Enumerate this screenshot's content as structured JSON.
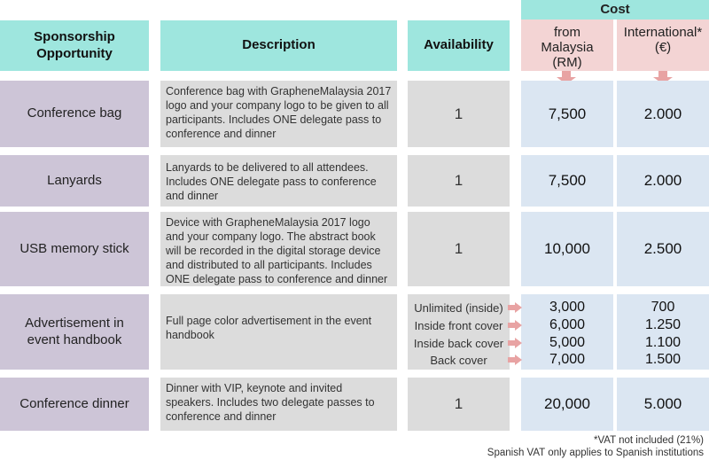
{
  "headers": {
    "opportunity": "Sponsorship Opportunity",
    "description": "Description",
    "availability": "Availability",
    "cost": "Cost",
    "from_malaysia": "from Malaysia (RM)",
    "international": "International* (€)"
  },
  "rows": [
    {
      "name": "Conference bag",
      "description": "Conference bag with GrapheneMalaysia 2017 logo and your company logo to be given to all participants. Includes ONE delegate pass to conference and dinner",
      "availability": "1",
      "cost_rm": "7,500",
      "cost_eur": "2.000"
    },
    {
      "name": "Lanyards",
      "description": "Lanyards to be delivered to all attendees. Includes ONE delegate pass to conference and dinner",
      "availability": "1",
      "cost_rm": "7,500",
      "cost_eur": "2.000"
    },
    {
      "name": "USB memory stick",
      "description": "Device with GrapheneMalaysia 2017 logo and your company logo. The abstract book will be recorded in the digital storage device and distributed to all participants. Includes ONE delegate pass to conference and dinner",
      "availability": "1",
      "cost_rm": "10,000",
      "cost_eur": "2.500"
    },
    {
      "name": "Advertisement in event handbook",
      "description": "Full page color advertisement in the event handbook",
      "options": [
        {
          "label": "Unlimited (inside)",
          "cost_rm": "3,000",
          "cost_eur": "700"
        },
        {
          "label": "Inside front cover",
          "cost_rm": "6,000",
          "cost_eur": "1.250"
        },
        {
          "label": "Inside back cover",
          "cost_rm": "5,000",
          "cost_eur": "1.100"
        },
        {
          "label": "Back cover",
          "cost_rm": "7,000",
          "cost_eur": "1.500"
        }
      ]
    },
    {
      "name": "Conference dinner",
      "description": "Dinner with VIP, keynote and invited speakers. Includes two delegate passes to conference and dinner",
      "availability": "1",
      "cost_rm": "20,000",
      "cost_eur": "5.000"
    }
  ],
  "footnote": {
    "line1": "*VAT not included (21%)",
    "line2": "Spanish VAT only applies to Spanish institutions"
  },
  "colors": {
    "header_teal": "#9ee6de",
    "opportunity_purple": "#cdc5d7",
    "description_grey": "#dcdcdc",
    "cost_blue": "#dbe6f2",
    "cost_subheader_pink": "#f3d4d4",
    "arrow_pink": "#e8a3a3"
  }
}
